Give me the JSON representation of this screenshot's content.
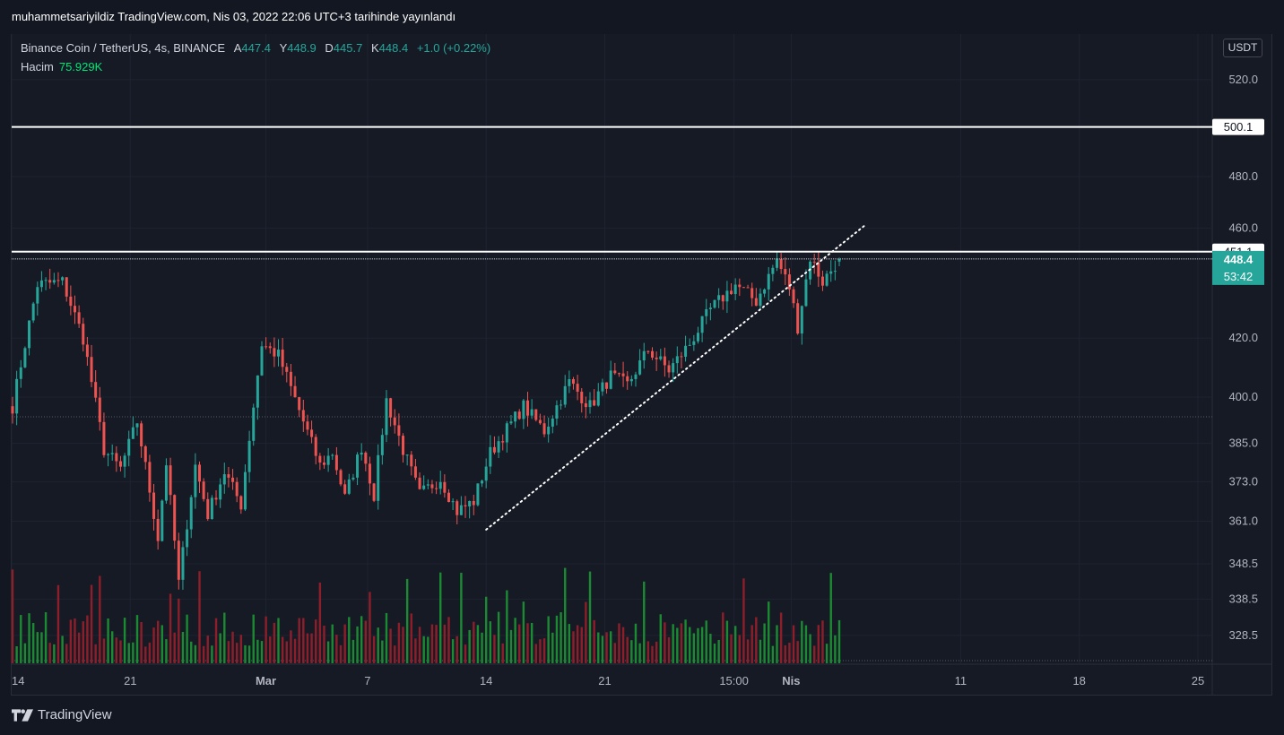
{
  "publication": "muhammetsariyildiz TradingView.com, Nis 03, 2022 22:06 UTC+3 tarihinde yayınlandı",
  "legend": {
    "symbol": "Binance Coin / TetherUS, 4s, BINANCE",
    "open_label": "A",
    "open": "447.4",
    "high_label": "Y",
    "high": "448.9",
    "low_label": "D",
    "low": "445.7",
    "close_label": "K",
    "close": "448.4",
    "change": "+1.0 (+0.22%)",
    "volume_label": "Hacim",
    "volume": "75.929K"
  },
  "currency_button": "USDT",
  "brand": "TradingView",
  "colors": {
    "background": "#161a25",
    "up": "#26a69a",
    "down": "#ef5350",
    "volume_up": "#1b8a32",
    "volume_down": "#8e1f2a",
    "text": "#d1d4dc"
  },
  "chart_data": {
    "type": "candlestick",
    "symbol": "BNBUSDT",
    "interval": "4s",
    "y_scale": "log",
    "ylim": [
      321,
      540
    ],
    "y_ticks": [
      520.0,
      480.0,
      460.0,
      420.0,
      400.0,
      385.0,
      373.0,
      361.0,
      348.5,
      338.5,
      328.5
    ],
    "y_tick_labels": [
      "520.0",
      "480.0",
      "460.0",
      "420.0",
      "400.0",
      "385.0",
      "373.0",
      "361.0",
      "348.5",
      "338.5",
      "328.5"
    ],
    "x_tick_labels": [
      "14",
      "21",
      "Mar",
      "7",
      "14",
      "21",
      "15:00",
      "Nis",
      "11",
      "18",
      "25"
    ],
    "x_tick_dates": [
      "2022-02-14",
      "2022-02-21",
      "2022-03-01",
      "2022-03-07",
      "2022-03-14",
      "2022-03-21",
      "2022-03-28 15:00",
      "2022-04-01",
      "2022-04-11",
      "2022-04-18",
      "2022-04-25"
    ],
    "horizontal_lines": [
      {
        "price": 500.1,
        "label": "500.1",
        "style": "solid"
      },
      {
        "price": 451.1,
        "label": "451.1",
        "style": "solid"
      }
    ],
    "last_price": {
      "price": 448.4,
      "label": "448.4",
      "countdown": "53:42"
    },
    "trendline": {
      "style": "dotted",
      "from": {
        "date": "2022-03-14",
        "price": 358.5
      },
      "to": {
        "date": "2022-04-03",
        "price": 449.0
      }
    },
    "anchor_prices": {
      "start": 397,
      "p1": 439,
      "p2": 440,
      "p3": 420,
      "p4": 383,
      "p5": 377,
      "p6": 392,
      "p7": 356,
      "p8": 379,
      "p9": 343,
      "p10": 378,
      "p11": 363,
      "p12": 376,
      "p13": 366,
      "p14": 418,
      "p15": 414,
      "p16": 392,
      "p17": 378,
      "p18": 382,
      "p19": 368,
      "p20": 384,
      "p21": 369,
      "p22": 399,
      "p23": 383,
      "p24": 369,
      "p25": 374,
      "p26": 364,
      "p27": 367,
      "p28": 382,
      "p29": 397,
      "p30": 389,
      "p31": 405,
      "p32": 397,
      "p33": 407,
      "p34": 404,
      "p35": 416,
      "p36": 409,
      "p37": 418,
      "p38": 430,
      "p39": 439,
      "p40": 433,
      "p41": 448,
      "p42": 438,
      "p43": 424,
      "p44": 449,
      "p45": 440,
      "p46": 448.4
    }
  }
}
